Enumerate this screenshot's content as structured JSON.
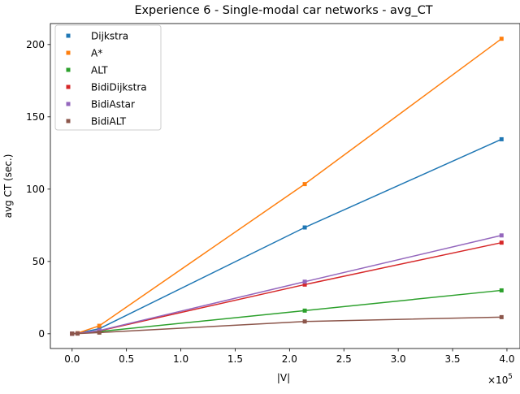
{
  "chart_data": {
    "type": "line",
    "title": "Experience 6 - Single-modal car networks - avg_CT",
    "xlabel": "|V|",
    "ylabel": "avg CT (sec.)",
    "x_multiplier_label": "×10",
    "x_multiplier_exp": "5",
    "xlim": [
      -0.2,
      4.12
    ],
    "ylim": [
      -10.2,
      214.5
    ],
    "x_ticks": [
      0.0,
      0.5,
      1.0,
      1.5,
      2.0,
      2.5,
      3.0,
      3.5,
      4.0
    ],
    "x_tick_labels": [
      "0.0",
      "0.5",
      "1.0",
      "1.5",
      "2.0",
      "2.5",
      "3.0",
      "3.5",
      "4.0"
    ],
    "y_ticks": [
      0,
      50,
      100,
      150,
      200
    ],
    "y_tick_labels": [
      "0",
      "50",
      "100",
      "150",
      "200"
    ],
    "grid": false,
    "legend_position": "upper-left",
    "x": [
      0.0,
      0.05,
      0.25,
      2.14,
      3.95
    ],
    "series": [
      {
        "name": "Dijkstra",
        "color": "#1f77b4",
        "values": [
          0.1,
          0.3,
          3.5,
          73.5,
          134.5
        ]
      },
      {
        "name": "A*",
        "color": "#ff7f0e",
        "values": [
          0.1,
          0.4,
          5.5,
          103.5,
          204.0
        ]
      },
      {
        "name": "ALT",
        "color": "#2ca02c",
        "values": [
          0.05,
          0.2,
          1.5,
          16.0,
          30.0
        ]
      },
      {
        "name": "BidiDijkstra",
        "color": "#d62728",
        "values": [
          0.05,
          0.2,
          2.0,
          34.0,
          63.0
        ]
      },
      {
        "name": "BidiAstar",
        "color": "#9467bd",
        "values": [
          0.05,
          0.2,
          2.2,
          36.0,
          68.0
        ]
      },
      {
        "name": "BidiALT",
        "color": "#8c564b",
        "values": [
          0.02,
          0.1,
          0.8,
          8.5,
          11.5
        ]
      }
    ]
  }
}
